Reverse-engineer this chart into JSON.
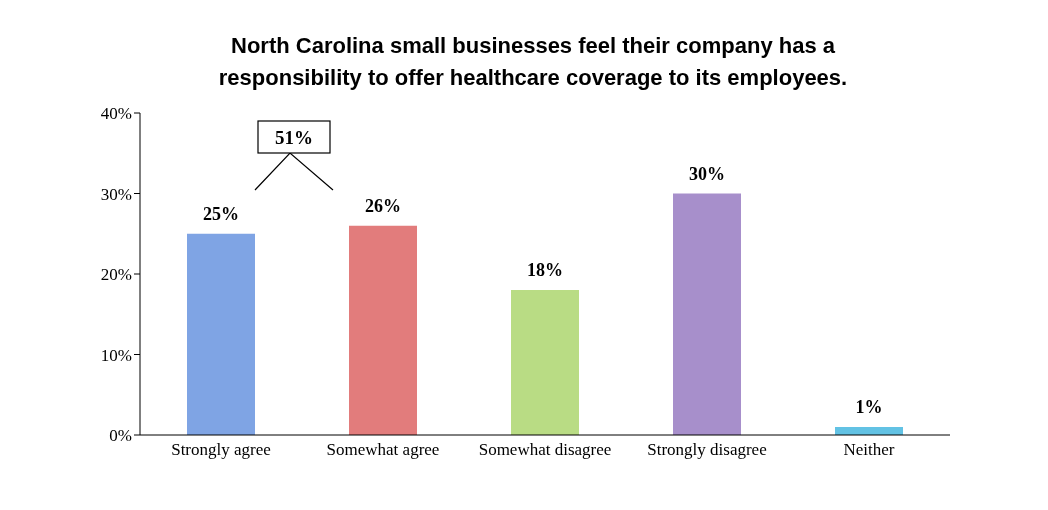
{
  "chart_data": {
    "type": "bar",
    "title": "North Carolina small businesses feel their company has a responsibility to offer healthcare coverage to its employees.",
    "categories": [
      "Strongly agree",
      "Somewhat agree",
      "Somewhat disagree",
      "Strongly disagree",
      "Neither"
    ],
    "values": [
      25,
      26,
      18,
      30,
      1
    ],
    "colors": [
      "#7fa4e4",
      "#e27c7c",
      "#b9dc84",
      "#a78fcb",
      "#62c2e4"
    ],
    "value_labels": [
      "25%",
      "26%",
      "18%",
      "30%",
      "1%"
    ],
    "annotations": [
      "51%"
    ],
    "ylim": [
      0,
      40
    ],
    "yticks": [
      {
        "value": 0,
        "label": "0%"
      },
      {
        "value": 10,
        "label": "10%"
      },
      {
        "value": 20,
        "label": "20%"
      },
      {
        "value": 30,
        "label": "30%"
      },
      {
        "value": 40,
        "label": "40%"
      }
    ],
    "grid": false,
    "legend": false
  }
}
